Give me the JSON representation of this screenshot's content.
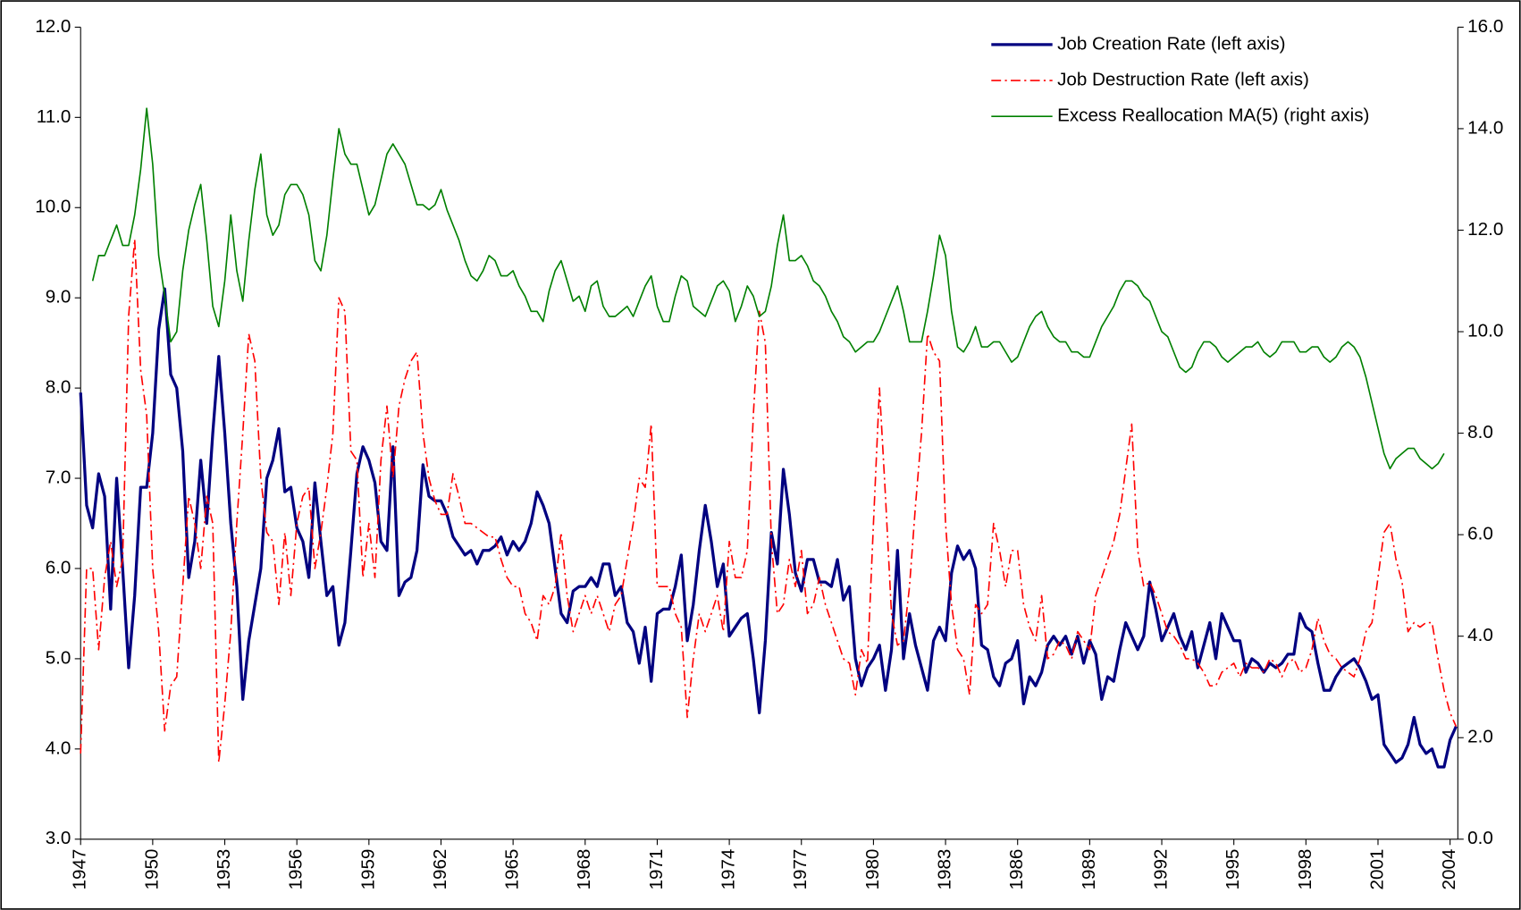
{
  "chart_data": {
    "type": "line",
    "categories": [
      "1947",
      null,
      null,
      null,
      null,
      null,
      null,
      null,
      null,
      null,
      null,
      null,
      "1950",
      null,
      null,
      null,
      null,
      null,
      null,
      null,
      null,
      null,
      null,
      null,
      "1953",
      null,
      null,
      null,
      null,
      null,
      null,
      null,
      null,
      null,
      null,
      null,
      "1956",
      null,
      null,
      null,
      null,
      null,
      null,
      null,
      null,
      null,
      null,
      null,
      "1959",
      null,
      null,
      null,
      null,
      null,
      null,
      null,
      null,
      null,
      null,
      null,
      "1962",
      null,
      null,
      null,
      null,
      null,
      null,
      null,
      null,
      null,
      null,
      null,
      "1965",
      null,
      null,
      null,
      null,
      null,
      null,
      null,
      null,
      null,
      null,
      null,
      "1968",
      null,
      null,
      null,
      null,
      null,
      null,
      null,
      null,
      null,
      null,
      null,
      "1971",
      null,
      null,
      null,
      null,
      null,
      null,
      null,
      null,
      null,
      null,
      null,
      "1974",
      null,
      null,
      null,
      null,
      null,
      null,
      null,
      null,
      null,
      null,
      null,
      "1977",
      null,
      null,
      null,
      null,
      null,
      null,
      null,
      null,
      null,
      null,
      null,
      "1980",
      null,
      null,
      null,
      null,
      null,
      null,
      null,
      null,
      null,
      null,
      null,
      "1983",
      null,
      null,
      null,
      null,
      null,
      null,
      null,
      null,
      null,
      null,
      null,
      "1986",
      null,
      null,
      null,
      null,
      null,
      null,
      null,
      null,
      null,
      null,
      null,
      "1989",
      null,
      null,
      null,
      null,
      null,
      null,
      null,
      null,
      null,
      null,
      null,
      "1992",
      null,
      null,
      null,
      null,
      null,
      null,
      null,
      null,
      null,
      null,
      null,
      "1995",
      null,
      null,
      null,
      null,
      null,
      null,
      null,
      null,
      null,
      null,
      null,
      "1998",
      null,
      null,
      null,
      null,
      null,
      null,
      null,
      null,
      null,
      null,
      null,
      "2001",
      null,
      null,
      null,
      null,
      null,
      null,
      null,
      null,
      null,
      null,
      null,
      "2004",
      null
    ],
    "series": [
      {
        "name": "Job Creation Rate (left axis)",
        "color": "#000080",
        "width": 3,
        "line_style": "solid",
        "axis": "y",
        "values": [
          7.95,
          6.7,
          6.45,
          7.05,
          6.8,
          5.55,
          7.0,
          6.0,
          4.9,
          5.7,
          6.9,
          6.9,
          7.5,
          8.65,
          9.1,
          8.15,
          8.0,
          7.3,
          5.9,
          6.3,
          7.2,
          6.5,
          7.5,
          8.35,
          7.5,
          6.5,
          5.8,
          4.55,
          5.2,
          5.6,
          6.0,
          7.0,
          7.2,
          7.55,
          6.85,
          6.9,
          6.45,
          6.3,
          5.9,
          6.95,
          6.3,
          5.7,
          5.8,
          5.15,
          5.4,
          6.2,
          7.05,
          7.35,
          7.2,
          6.95,
          6.3,
          6.2,
          7.35,
          5.7,
          5.85,
          5.9,
          6.2,
          7.15,
          6.8,
          6.75,
          6.75,
          6.6,
          6.35,
          6.25,
          6.15,
          6.2,
          6.05,
          6.2,
          6.2,
          6.25,
          6.35,
          6.15,
          6.3,
          6.2,
          6.3,
          6.5,
          6.85,
          6.7,
          6.5,
          6.0,
          5.5,
          5.4,
          5.75,
          5.8,
          5.8,
          5.9,
          5.8,
          6.05,
          6.05,
          5.7,
          5.8,
          5.4,
          5.3,
          4.95,
          5.35,
          4.75,
          5.5,
          5.55,
          5.55,
          5.8,
          6.15,
          5.2,
          5.6,
          6.2,
          6.7,
          6.3,
          5.8,
          6.05,
          5.25,
          5.35,
          5.45,
          5.5,
          5.0,
          4.4,
          5.2,
          6.4,
          6.05,
          7.1,
          6.6,
          5.95,
          5.75,
          6.1,
          6.1,
          5.85,
          5.85,
          5.8,
          6.1,
          5.65,
          5.8,
          5.0,
          4.7,
          4.9,
          5.0,
          5.15,
          4.65,
          5.1,
          6.2,
          5.0,
          5.5,
          5.15,
          4.9,
          4.65,
          5.2,
          5.35,
          5.2,
          5.95,
          6.25,
          6.1,
          6.2,
          6.0,
          5.15,
          5.1,
          4.8,
          4.7,
          4.95,
          5.0,
          5.2,
          4.5,
          4.8,
          4.7,
          4.85,
          5.15,
          5.25,
          5.15,
          5.25,
          5.05,
          5.25,
          4.95,
          5.2,
          5.05,
          4.55,
          4.8,
          4.75,
          5.1,
          5.4,
          5.25,
          5.1,
          5.25,
          5.85,
          5.55,
          5.2,
          5.35,
          5.5,
          5.25,
          5.1,
          5.3,
          4.9,
          5.15,
          5.4,
          5.0,
          5.5,
          5.35,
          5.2,
          5.2,
          4.85,
          5.0,
          4.95,
          4.85,
          4.95,
          4.9,
          4.95,
          5.05,
          5.05,
          5.5,
          5.35,
          5.3,
          4.95,
          4.65,
          4.65,
          4.8,
          4.9,
          4.95,
          5.0,
          4.9,
          4.75,
          4.55,
          4.6,
          4.05,
          3.95,
          3.85,
          3.9,
          4.05,
          4.35,
          4.05,
          3.95,
          4.0,
          3.8,
          3.8,
          4.1,
          4.25
        ]
      },
      {
        "name": "Job Destruction Rate (left axis)",
        "color": "#ff0000",
        "width": 1.5,
        "line_style": "dashdot",
        "axis": "y",
        "values": [
          3.95,
          6.0,
          6.0,
          5.1,
          5.9,
          6.3,
          5.8,
          6.1,
          8.8,
          9.65,
          8.2,
          7.7,
          6.0,
          5.3,
          4.2,
          4.7,
          4.8,
          5.8,
          6.8,
          6.5,
          6.0,
          6.8,
          6.5,
          3.85,
          4.5,
          5.3,
          6.5,
          7.5,
          8.6,
          8.3,
          7.0,
          6.4,
          6.3,
          5.6,
          6.4,
          5.7,
          6.5,
          6.8,
          6.9,
          6.0,
          6.4,
          6.9,
          7.5,
          9.0,
          8.85,
          7.3,
          7.2,
          5.9,
          6.5,
          5.9,
          7.2,
          7.8,
          7.0,
          7.8,
          8.1,
          8.3,
          8.4,
          7.5,
          7.0,
          6.75,
          6.6,
          6.6,
          7.05,
          6.8,
          6.5,
          6.5,
          6.45,
          6.4,
          6.35,
          6.35,
          6.1,
          5.9,
          5.8,
          5.8,
          5.5,
          5.4,
          5.2,
          5.7,
          5.6,
          5.8,
          6.4,
          5.7,
          5.3,
          5.5,
          5.7,
          5.5,
          5.7,
          5.5,
          5.3,
          5.6,
          5.7,
          6.1,
          6.5,
          7.0,
          6.9,
          7.6,
          5.8,
          5.8,
          5.8,
          5.5,
          5.35,
          4.35,
          5.0,
          5.5,
          5.3,
          5.5,
          5.7,
          5.3,
          6.3,
          5.9,
          5.9,
          6.2,
          7.7,
          8.85,
          8.5,
          6.3,
          5.5,
          5.6,
          6.1,
          5.8,
          6.2,
          5.5,
          5.6,
          5.9,
          5.6,
          5.4,
          5.2,
          5.0,
          4.95,
          4.6,
          5.1,
          4.95,
          6.5,
          8.0,
          6.8,
          5.5,
          5.15,
          5.2,
          5.8,
          6.7,
          7.5,
          8.6,
          8.4,
          8.3,
          6.5,
          5.6,
          5.1,
          5.0,
          4.6,
          5.6,
          5.5,
          5.6,
          6.5,
          6.2,
          5.8,
          6.2,
          6.2,
          5.6,
          5.35,
          5.2,
          5.7,
          5.0,
          5.05,
          5.2,
          5.15,
          5.0,
          5.3,
          5.2,
          5.1,
          5.7,
          5.9,
          6.1,
          6.3,
          6.6,
          7.1,
          7.6,
          6.2,
          5.8,
          5.85,
          5.7,
          5.5,
          5.3,
          5.25,
          5.15,
          5.0,
          5.0,
          4.95,
          4.85,
          4.7,
          4.7,
          4.85,
          4.9,
          4.95,
          4.8,
          4.95,
          4.9,
          4.9,
          4.85,
          5.0,
          4.95,
          4.8,
          4.95,
          5.0,
          4.85,
          4.9,
          5.1,
          5.45,
          5.2,
          5.05,
          5.0,
          4.9,
          4.85,
          4.8,
          5.0,
          5.3,
          5.4,
          5.9,
          6.4,
          6.5,
          6.1,
          5.85,
          5.3,
          5.4,
          5.35,
          5.4,
          5.4,
          5.0,
          4.65,
          4.4,
          4.25
        ]
      },
      {
        "name": "Excess Reallocation MA(5) (right axis)",
        "color": "#008000",
        "width": 1.5,
        "line_style": "solid",
        "axis": "y2",
        "values": [
          null,
          null,
          11.0,
          11.5,
          11.5,
          11.8,
          12.1,
          11.7,
          11.7,
          12.3,
          13.2,
          14.4,
          13.3,
          11.5,
          10.7,
          9.8,
          10.0,
          11.2,
          12.0,
          12.5,
          12.9,
          11.8,
          10.5,
          10.1,
          11.0,
          12.3,
          11.2,
          10.6,
          11.8,
          12.8,
          13.5,
          12.3,
          11.9,
          12.1,
          12.7,
          12.9,
          12.9,
          12.7,
          12.3,
          11.4,
          11.2,
          11.9,
          13.0,
          14.0,
          13.5,
          13.3,
          13.3,
          12.8,
          12.3,
          12.5,
          13.0,
          13.5,
          13.7,
          13.5,
          13.3,
          12.9,
          12.5,
          12.5,
          12.4,
          12.5,
          12.8,
          12.4,
          12.1,
          11.8,
          11.4,
          11.1,
          11.0,
          11.2,
          11.5,
          11.4,
          11.1,
          11.1,
          11.2,
          10.9,
          10.7,
          10.4,
          10.4,
          10.2,
          10.8,
          11.2,
          11.4,
          11.0,
          10.6,
          10.7,
          10.4,
          10.9,
          11.0,
          10.5,
          10.3,
          10.3,
          10.4,
          10.5,
          10.3,
          10.6,
          10.9,
          11.1,
          10.5,
          10.2,
          10.2,
          10.7,
          11.1,
          11.0,
          10.5,
          10.4,
          10.3,
          10.6,
          10.9,
          11.0,
          10.8,
          10.2,
          10.5,
          10.9,
          10.7,
          10.3,
          10.4,
          10.9,
          11.7,
          12.3,
          11.4,
          11.4,
          11.5,
          11.3,
          11.0,
          10.9,
          10.7,
          10.4,
          10.2,
          9.9,
          9.8,
          9.6,
          9.7,
          9.8,
          9.8,
          10.0,
          10.3,
          10.6,
          10.9,
          10.4,
          9.8,
          9.8,
          9.8,
          10.4,
          11.1,
          11.9,
          11.5,
          10.4,
          9.7,
          9.6,
          9.8,
          10.1,
          9.7,
          9.7,
          9.8,
          9.8,
          9.6,
          9.4,
          9.5,
          9.8,
          10.1,
          10.3,
          10.4,
          10.1,
          9.9,
          9.8,
          9.8,
          9.6,
          9.6,
          9.5,
          9.5,
          9.8,
          10.1,
          10.3,
          10.5,
          10.8,
          11.0,
          11.0,
          10.9,
          10.7,
          10.6,
          10.3,
          10.0,
          9.9,
          9.6,
          9.3,
          9.2,
          9.3,
          9.6,
          9.8,
          9.8,
          9.7,
          9.5,
          9.4,
          9.5,
          9.6,
          9.7,
          9.7,
          9.8,
          9.6,
          9.5,
          9.6,
          9.8,
          9.8,
          9.8,
          9.6,
          9.6,
          9.7,
          9.7,
          9.5,
          9.4,
          9.5,
          9.7,
          9.8,
          9.7,
          9.5,
          9.1,
          8.6,
          8.1,
          7.6,
          7.3,
          7.5,
          7.6,
          7.7,
          7.7,
          7.5,
          7.4,
          7.3,
          7.4,
          7.6,
          null,
          null
        ]
      }
    ],
    "ylim": [
      3,
      12
    ],
    "yticks": [
      {
        "value": 3,
        "label": "3.0"
      },
      {
        "value": 4,
        "label": "4.0"
      },
      {
        "value": 5,
        "label": "5.0"
      },
      {
        "value": 6,
        "label": "6.0"
      },
      {
        "value": 7,
        "label": "7.0"
      },
      {
        "value": 8,
        "label": "8.0"
      },
      {
        "value": 9,
        "label": "9.0"
      },
      {
        "value": 10,
        "label": "10.0"
      },
      {
        "value": 11,
        "label": "11.0"
      },
      {
        "value": 12,
        "label": "12.0"
      }
    ],
    "y2lim": [
      0,
      16
    ],
    "y2ticks": [
      {
        "value": 0,
        "label": "0.0"
      },
      {
        "value": 2,
        "label": "2.0"
      },
      {
        "value": 4,
        "label": "4.0"
      },
      {
        "value": 6,
        "label": "6.0"
      },
      {
        "value": 8,
        "label": "8.0"
      },
      {
        "value": 10,
        "label": "10.0"
      },
      {
        "value": 12,
        "label": "12.0"
      },
      {
        "value": 14,
        "label": "14.0"
      },
      {
        "value": 16,
        "label": "16.0"
      }
    ],
    "grid": false,
    "legend": "upper-right"
  }
}
